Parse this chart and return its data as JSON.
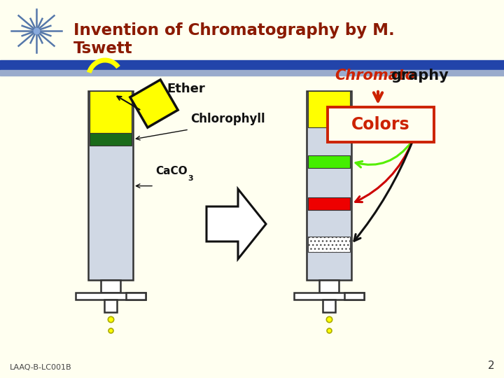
{
  "bg_color": "#FFFFF0",
  "title_color": "#8B1A00",
  "header_bar_color": "#2244AA",
  "header_bar2_color": "#9AABCC",
  "star_color": "#5577AA",
  "ether_label": "Ether",
  "chlorophyll_label": "Chlorophyll",
  "caco3_label": "CaCO",
  "caco3_sub": "3",
  "chromato_prefix": "Chromato",
  "chromato_suffix": "graphy",
  "colors_label": "Colors",
  "colors_box_color": "#CC2200",
  "footer_text": "LAAQ-B-LC001B",
  "page_num": "2"
}
